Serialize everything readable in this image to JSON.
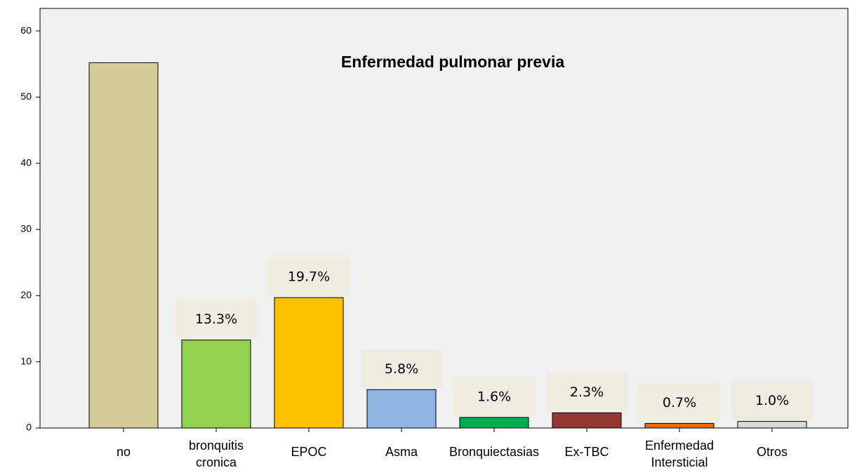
{
  "chart_data": {
    "type": "bar",
    "title": "Enfermedad pulmonar previa",
    "categories": [
      "no",
      "bronquitis cronica",
      "EPOC",
      "Asma",
      "Bronquiectasias",
      "Ex-TBC",
      "Enfermedad Intersticial",
      "Otros"
    ],
    "values": [
      55.2,
      13.3,
      19.7,
      5.8,
      1.6,
      2.3,
      0.7,
      1.0
    ],
    "value_labels": [
      null,
      "13.3%",
      "19.7%",
      "5.8%",
      "1.6%",
      "2.3%",
      "0.7%",
      "1.0%"
    ],
    "colors": [
      "#d4cd97",
      "#92d050",
      "#ffc000",
      "#8eb4e3",
      "#00b050",
      "#953735",
      "#e46c0a",
      "#d9d9d9"
    ],
    "ylim": [
      0,
      63.4
    ],
    "yticks": [
      0,
      10,
      20,
      30,
      40,
      50,
      60
    ],
    "grid": false
  }
}
